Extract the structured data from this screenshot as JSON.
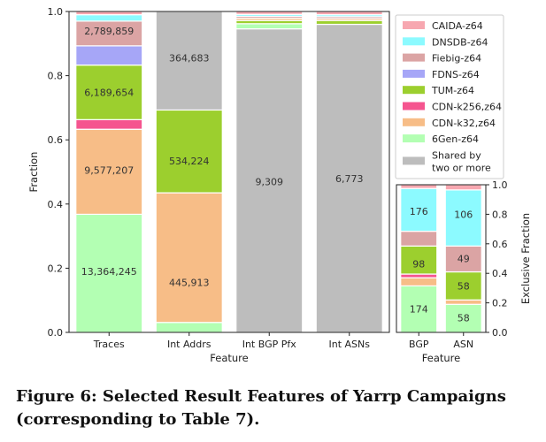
{
  "caption": "Figure 6: Selected Result Features of Yarrp Campaigns (corresponding to Table 7).",
  "chart_data": [
    {
      "type": "bar",
      "stacked": true,
      "xlabel": "Feature",
      "ylabel": "Fraction",
      "ylim": [
        0,
        1.0
      ],
      "yticks": [
        0.0,
        0.2,
        0.4,
        0.6,
        0.8,
        1.0
      ],
      "categories": [
        "Traces",
        "Int Addrs",
        "Int BGP Pfx",
        "Int ASNs"
      ],
      "series": [
        {
          "name": "6Gen-z64",
          "color": "#b3ffb3",
          "values": [
            0.368,
            0.031,
            0.0,
            0.0
          ]
        },
        {
          "name": "CDN-k32,z64",
          "color": "#f7bd87",
          "values": [
            0.265,
            0.404,
            0.0,
            0.0
          ]
        },
        {
          "name": "CDN-k256,z64",
          "color": "#f5558f",
          "values": [
            0.03,
            0.0,
            0.0,
            0.0
          ]
        },
        {
          "name": "TUM-z64",
          "color": "#9ccf2e",
          "values": [
            0.17,
            0.258,
            0.0,
            0.0
          ]
        },
        {
          "name": "FDNS-z64",
          "color": "#a6a6f7",
          "values": [
            0.06,
            0.0,
            0.0,
            0.0
          ]
        },
        {
          "name": "Fiebig-z64",
          "color": "#dba4a4",
          "values": [
            0.077,
            0.0,
            0.0,
            0.0
          ]
        },
        {
          "name": "DNSDB-z64",
          "color": "#8cfaff",
          "values": [
            0.02,
            0.0,
            0.0,
            0.0
          ]
        },
        {
          "name": "CAIDA-z64",
          "color": "#f7a7b0",
          "values": [
            0.01,
            0.0,
            0.0,
            0.0
          ]
        },
        {
          "name": "Shared by two or more",
          "color": "#bdbdbd",
          "values": [
            0.0,
            0.307,
            0.946,
            0.96
          ]
        }
      ],
      "extra_segments": [
        {
          "category": "Int BGP Pfx",
          "values": [
            0.016,
            0.01,
            0.007,
            0.006,
            0.006,
            0.009
          ],
          "colors": [
            "#b3ffb3",
            "#9ccf2e",
            "#f7bd87",
            "#dba4a4",
            "#8cfaff",
            "#f7a7b0"
          ]
        },
        {
          "category": "Int ASNs",
          "values": [
            0.012,
            0.006,
            0.006,
            0.006,
            0.01
          ],
          "colors": [
            "#9ccf2e",
            "#f7bd87",
            "#dba4a4",
            "#8cfaff",
            "#f7a7b0"
          ]
        },
        {
          "category": "Int Addrs",
          "values": [
            0.0
          ],
          "colors": [
            "#f7a7b0"
          ]
        }
      ],
      "labels": [
        {
          "category": "Traces",
          "y": 0.19,
          "text": "13,364,245"
        },
        {
          "category": "Traces",
          "y": 0.505,
          "text": "9,577,207"
        },
        {
          "category": "Traces",
          "y": 0.748,
          "text": "6,189,654"
        },
        {
          "category": "Traces",
          "y": 0.94,
          "text": "2,789,859"
        },
        {
          "category": "Int Addrs",
          "y": 0.155,
          "text": "445,913"
        },
        {
          "category": "Int Addrs",
          "y": 0.535,
          "text": "534,224"
        },
        {
          "category": "Int Addrs",
          "y": 0.855,
          "text": "364,683"
        },
        {
          "category": "Int BGP Pfx",
          "y": 0.47,
          "text": "9,309"
        },
        {
          "category": "Int ASNs",
          "y": 0.48,
          "text": "6,773"
        }
      ],
      "legend": [
        "CAIDA-z64",
        "DNSDB-z64",
        "Fiebig-z64",
        "FDNS-z64",
        "TUM-z64",
        "CDN-k256,z64",
        "CDN-k32,z64",
        "6Gen-z64",
        "Shared by two or more"
      ],
      "legend_lines": [
        [
          "CAIDA-z64"
        ],
        [
          "DNSDB-z64"
        ],
        [
          "Fiebig-z64"
        ],
        [
          "FDNS-z64"
        ],
        [
          "TUM-z64"
        ],
        [
          "CDN-k256,z64"
        ],
        [
          "CDN-k32,z64"
        ],
        [
          "6Gen-z64"
        ],
        [
          "Shared by",
          "two or more"
        ]
      ],
      "legend_placement": "top-right"
    },
    {
      "type": "bar",
      "stacked": true,
      "xlabel": "Feature",
      "ylabel": "Exclusive Fraction",
      "ylim": [
        0,
        1.0
      ],
      "yticks": [
        0.0,
        0.2,
        0.4,
        0.6,
        0.8,
        1.0
      ],
      "categories": [
        "BGP",
        "ASN"
      ],
      "segments": [
        {
          "category": "BGP",
          "values": [
            0.315,
            0.055,
            0.025,
            0.19,
            0.1,
            0.29,
            0.025
          ],
          "colors": [
            "#b3ffb3",
            "#f7bd87",
            "#f5558f",
            "#9ccf2e",
            "#dba4a4",
            "#8cfaff",
            "#f7a7b0"
          ]
        },
        {
          "category": "ASN",
          "values": [
            0.19,
            0.03,
            0.19,
            0.175,
            0.38,
            0.035
          ],
          "colors": [
            "#b3ffb3",
            "#f7bd87",
            "#9ccf2e",
            "#dba4a4",
            "#8cfaff",
            "#f7a7b0"
          ]
        }
      ],
      "labels": [
        {
          "category": "BGP",
          "y": 0.16,
          "text": "174"
        },
        {
          "category": "BGP",
          "y": 0.465,
          "text": "98"
        },
        {
          "category": "BGP",
          "y": 0.82,
          "text": "176"
        },
        {
          "category": "ASN",
          "y": 0.1,
          "text": "58"
        },
        {
          "category": "ASN",
          "y": 0.315,
          "text": "58"
        },
        {
          "category": "ASN",
          "y": 0.5,
          "text": "49"
        },
        {
          "category": "ASN",
          "y": 0.8,
          "text": "106"
        }
      ]
    }
  ]
}
